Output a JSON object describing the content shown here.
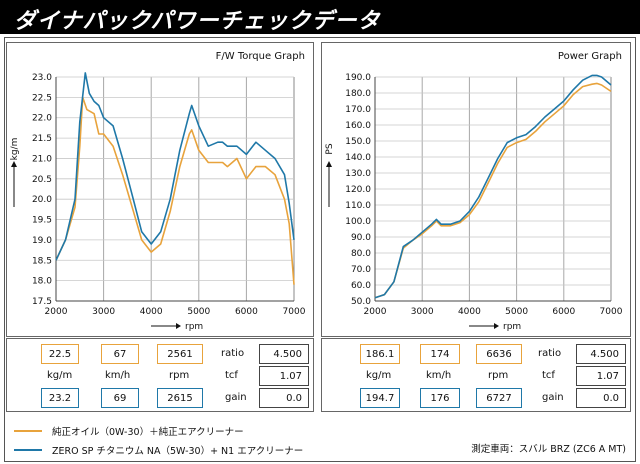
{
  "header": {
    "title": "ダイナパックパワーチェックデータ"
  },
  "colors": {
    "orange": "#e8a33c",
    "blue": "#1f78a8"
  },
  "chart_data": [
    {
      "type": "line",
      "title": "F/W Torque Graph",
      "xlabel": "rpm",
      "ylabel": "kg/m",
      "xlim": [
        2000,
        7000
      ],
      "ylim": [
        17.5,
        23.0
      ],
      "xticks": [
        2000,
        3000,
        4000,
        5000,
        6000,
        7000
      ],
      "yticks": [
        17.5,
        18.0,
        18.5,
        19.0,
        19.5,
        20.0,
        20.5,
        21.0,
        21.5,
        22.0,
        22.5,
        23.0
      ],
      "ytick_labels": [
        "17.5",
        "18.0",
        "18.5",
        "19.0",
        "19.5",
        "20.0",
        "20.5",
        "21.0",
        "21.5",
        "22.0",
        "22.5",
        "23.0"
      ],
      "grid": true,
      "series": [
        {
          "color": "#e8a33c",
          "x": [
            2000,
            2200,
            2400,
            2500,
            2561,
            2650,
            2800,
            2900,
            3000,
            3200,
            3400,
            3600,
            3800,
            4000,
            4200,
            4400,
            4600,
            4800,
            4850,
            5000,
            5200,
            5400,
            5500,
            5600,
            5800,
            6000,
            6200,
            6400,
            6600,
            6800,
            6900,
            7000
          ],
          "y": [
            18.5,
            19.0,
            19.8,
            21.3,
            22.5,
            22.2,
            22.1,
            21.6,
            21.6,
            21.3,
            20.6,
            19.8,
            19.0,
            18.7,
            18.9,
            19.7,
            20.8,
            21.6,
            21.7,
            21.2,
            20.9,
            20.9,
            20.9,
            20.8,
            21.0,
            20.5,
            20.8,
            20.8,
            20.6,
            20.0,
            19.4,
            17.9
          ]
        },
        {
          "color": "#1f78a8",
          "x": [
            2000,
            2200,
            2400,
            2500,
            2615,
            2700,
            2800,
            2900,
            3000,
            3200,
            3400,
            3600,
            3800,
            4000,
            4200,
            4400,
            4600,
            4800,
            4850,
            5000,
            5200,
            5400,
            5500,
            5600,
            5800,
            6000,
            6200,
            6400,
            6600,
            6800,
            6900,
            7000
          ],
          "y": [
            18.5,
            19.0,
            20.0,
            21.9,
            23.1,
            22.6,
            22.4,
            22.3,
            22.0,
            21.8,
            21.0,
            20.1,
            19.2,
            18.9,
            19.2,
            20.0,
            21.2,
            22.1,
            22.3,
            21.8,
            21.3,
            21.4,
            21.4,
            21.3,
            21.3,
            21.1,
            21.4,
            21.2,
            21.0,
            20.6,
            19.9,
            19.0
          ]
        }
      ]
    },
    {
      "type": "line",
      "title": "Power Graph",
      "xlabel": "rpm",
      "ylabel": "PS",
      "xlim": [
        2000,
        7000
      ],
      "ylim": [
        50.0,
        190.0
      ],
      "xticks": [
        2000,
        3000,
        4000,
        5000,
        6000,
        7000
      ],
      "yticks": [
        50,
        60,
        70,
        80,
        90,
        100,
        110,
        120,
        130,
        140,
        150,
        160,
        170,
        180,
        190
      ],
      "ytick_labels": [
        "50.0",
        "60.0",
        "70.0",
        "80.0",
        "90.0",
        "100.0",
        "110.0",
        "120.0",
        "130.0",
        "140.0",
        "150.0",
        "160.0",
        "170.0",
        "180.0",
        "190.0"
      ],
      "grid": true,
      "series": [
        {
          "color": "#e8a33c",
          "x": [
            2000,
            2200,
            2400,
            2600,
            2800,
            3000,
            3200,
            3300,
            3400,
            3600,
            3800,
            4000,
            4200,
            4400,
            4600,
            4800,
            5000,
            5200,
            5400,
            5600,
            5800,
            6000,
            6200,
            6400,
            6600,
            6700,
            6800,
            7000
          ],
          "y": [
            52,
            54,
            62,
            83,
            88,
            92,
            97,
            100,
            97,
            97,
            99,
            104,
            112,
            124,
            136,
            146,
            149,
            151,
            156,
            162,
            167,
            172,
            179,
            184,
            185.5,
            186,
            185,
            181
          ]
        },
        {
          "color": "#1f78a8",
          "x": [
            2000,
            2200,
            2400,
            2600,
            2800,
            3000,
            3200,
            3300,
            3400,
            3600,
            3800,
            4000,
            4200,
            4400,
            4600,
            4800,
            5000,
            5200,
            5400,
            5600,
            5800,
            6000,
            6200,
            6400,
            6600,
            6700,
            6800,
            7000
          ],
          "y": [
            52,
            54,
            62,
            84,
            88,
            93,
            98,
            101,
            98,
            98,
            100,
            106,
            115,
            127,
            139,
            149,
            152,
            154,
            159,
            165,
            170,
            175,
            182,
            188,
            191,
            191,
            190,
            185
          ]
        }
      ]
    }
  ],
  "stats": {
    "left": {
      "orange": [
        "22.5",
        "67",
        "2561"
      ],
      "blue": [
        "23.2",
        "69",
        "2615"
      ],
      "units": [
        "kg/m",
        "km/h",
        "rpm"
      ],
      "labels": [
        "ratio",
        "tcf",
        "gain"
      ],
      "values": [
        "4.500",
        "1.07",
        "0.0"
      ]
    },
    "right": {
      "orange": [
        "186.1",
        "174",
        "6636"
      ],
      "blue": [
        "194.7",
        "176",
        "6727"
      ],
      "units": [
        "kg/m",
        "km/h",
        "rpm"
      ],
      "labels": [
        "ratio",
        "tcf",
        "gain"
      ],
      "values": [
        "4.500",
        "1.07",
        "0.0"
      ]
    }
  },
  "legend": {
    "orange_text": "純正オイル（0W-30）＋純正エアクリーナー",
    "blue_text": "ZERO SP チタニウム NA（5W-30）+ N1 エアクリーナー",
    "vehicle": "測定車両：スバル BRZ (ZC6 A MT)"
  }
}
